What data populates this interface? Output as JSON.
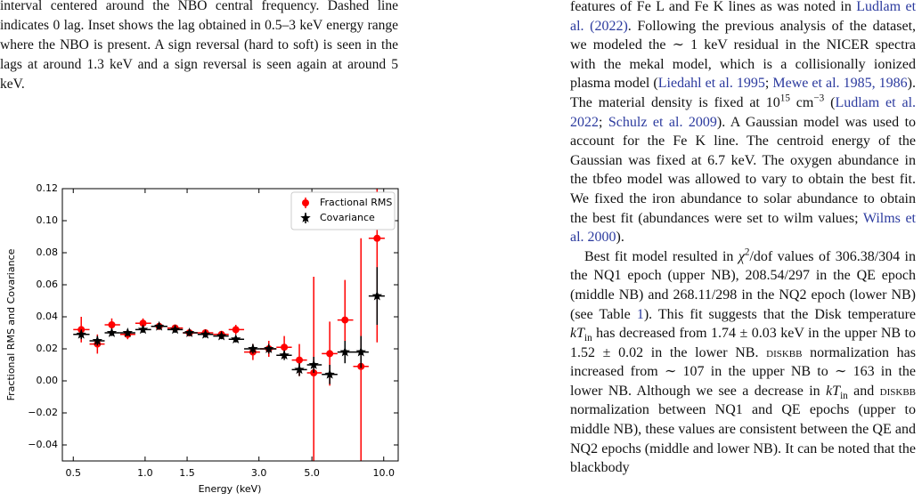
{
  "left_caption": "interval centered around the NBO central frequency. Dashed line indicates 0 lag. Inset shows the lag obtained in 0.5–3 keV energy range where the NBO is present. A sign reversal (hard to soft) is seen in the lags at around 1.3 keV and a sign reversal is seen again at around 5 keV.",
  "right_column": {
    "paragraphs": [
      [
        {
          "text": "features of Fe L and Fe K lines as was noted in "
        },
        {
          "text": "Ludlam et al. (2022)",
          "style": "link"
        },
        {
          "text": ". Following the previous analysis of the dataset, we modeled the ∼ 1 keV residual in the NICER spectra with the mekal model, which is a collisionally ionized plasma model ("
        },
        {
          "text": "Liedahl et al. 1995",
          "style": "link"
        },
        {
          "text": "; "
        },
        {
          "text": "Mewe et al. 1985, 1986",
          "style": "link"
        },
        {
          "text": "). The material density is fixed at 10"
        },
        {
          "text": "15",
          "style": "sup"
        },
        {
          "text": " cm"
        },
        {
          "text": "−3",
          "style": "sup"
        },
        {
          "text": " ("
        },
        {
          "text": "Ludlam et al. 2022",
          "style": "link"
        },
        {
          "text": "; "
        },
        {
          "text": "Schulz et al. 2009",
          "style": "link"
        },
        {
          "text": "). A Gaussian model was used to account for the Fe K line. The centroid energy of the Gaussian was fixed at 6.7 keV. The oxygen abundance in the tbfeo model was allowed to vary to obtain the best fit. We fixed the iron abundance to solar abundance to obtain the best fit (abundances were set to wilm values; "
        },
        {
          "text": "Wilms et al. 2000",
          "style": "link"
        },
        {
          "text": ")."
        }
      ],
      [
        {
          "text": "Best fit model resulted in "
        },
        {
          "text": "χ",
          "style": "italic"
        },
        {
          "text": "2",
          "style": "sup"
        },
        {
          "text": "/dof values of 306.38/304 in the NQ1 epoch (upper NB), 208.54/297 in the QE epoch (middle NB) and 268.11/298 in the NQ2 epoch (lower NB) (see Table "
        },
        {
          "text": "1",
          "style": "link"
        },
        {
          "text": "). This fit suggests that the Disk temperature "
        },
        {
          "text": "kT",
          "style": "italic"
        },
        {
          "text": "in",
          "style": "sub"
        },
        {
          "text": " has decreased from 1.74 ± 0.03 keV in the upper NB to 1.52 ± 0.02 in the lower NB. "
        },
        {
          "text": "diskbb",
          "style": "smallcaps"
        },
        {
          "text": " normalization has increased from ∼ 107 in the upper NB to ∼ 163 in the lower NB. Although we see a decrease in "
        },
        {
          "text": "kT",
          "style": "italic"
        },
        {
          "text": "in",
          "style": "sub"
        },
        {
          "text": " and "
        },
        {
          "text": "diskbb",
          "style": "smallcaps"
        },
        {
          "text": " normalization between NQ1 and QE epochs (upper to middle NB), these values are consistent between the QE and NQ2 epochs (middle and lower NB). It can be noted that the blackbody"
        }
      ]
    ]
  },
  "chart_data": {
    "type": "errorbar",
    "xlabel": "Energy (keV)",
    "ylabel": "Fractional RMS and Covariance",
    "xscale": "log",
    "xlim": [
      0.45,
      11.5
    ],
    "ylim": [
      -0.05,
      0.12
    ],
    "xticks": [
      0.5,
      {
        "value": 1,
        "label": "1.0"
      },
      1.5,
      {
        "value": 3,
        "label": "3.0"
      },
      {
        "value": 5,
        "label": "5.0"
      },
      {
        "value": 10,
        "label": "10.0"
      }
    ],
    "yticks": [
      {
        "value": -0.04,
        "label": "−0.04"
      },
      {
        "value": -0.02,
        "label": "−0.02"
      },
      {
        "value": 0,
        "label": "0.00"
      },
      0.02,
      0.04,
      0.06,
      0.08,
      {
        "value": 0.1,
        "label": "0.10"
      },
      0.12
    ],
    "legend": "upper right",
    "x": [
      0.54,
      0.631,
      0.725,
      0.845,
      0.98,
      1.145,
      1.336,
      1.534,
      1.79,
      2.09,
      2.4,
      2.83,
      3.3,
      3.83,
      4.43,
      5.09,
      5.94,
      6.88,
      8.03,
      9.38
    ],
    "x_bins": [
      0.5,
      0.585,
      0.677,
      0.786,
      0.91,
      1.06,
      1.24,
      1.44,
      1.66,
      1.93,
      2.24,
      2.6,
      3.03,
      3.55,
      4.12,
      4.77,
      5.5,
      6.4,
      7.45,
      8.65,
      10.1
    ],
    "series": [
      {
        "name": "Fractional RMS",
        "color": "#ff0000",
        "marker": "circle",
        "values": [
          0.032,
          0.023,
          0.035,
          0.029,
          0.036,
          0.034,
          0.033,
          0.03,
          0.03,
          0.029,
          0.032,
          0.018,
          0.02,
          0.021,
          0.013,
          0.005,
          0.017,
          0.038,
          0.009,
          0.089
        ],
        "errors": [
          0.008,
          0.006,
          0.004,
          0.003,
          0.003,
          0.002,
          0.002,
          0.002,
          0.002,
          0.002,
          0.003,
          0.005,
          0.005,
          0.007,
          0.01,
          0.06,
          0.02,
          0.025,
          0.08,
          0.065
        ]
      },
      {
        "name": "Covariance",
        "color": "#000000",
        "marker": "star",
        "values": [
          0.029,
          0.025,
          0.03,
          0.03,
          0.032,
          0.034,
          0.032,
          0.03,
          0.029,
          0.028,
          0.026,
          0.02,
          0.02,
          0.016,
          0.007,
          0.01,
          0.004,
          0.018,
          0.018,
          0.053
        ],
        "errors": [
          0.003,
          0.003,
          0.002,
          0.002,
          0.002,
          0.002,
          0.002,
          0.002,
          0.002,
          0.002,
          0.002,
          0.003,
          0.003,
          0.003,
          0.004,
          0.005,
          0.006,
          0.007,
          0.01,
          0.018
        ]
      }
    ]
  }
}
